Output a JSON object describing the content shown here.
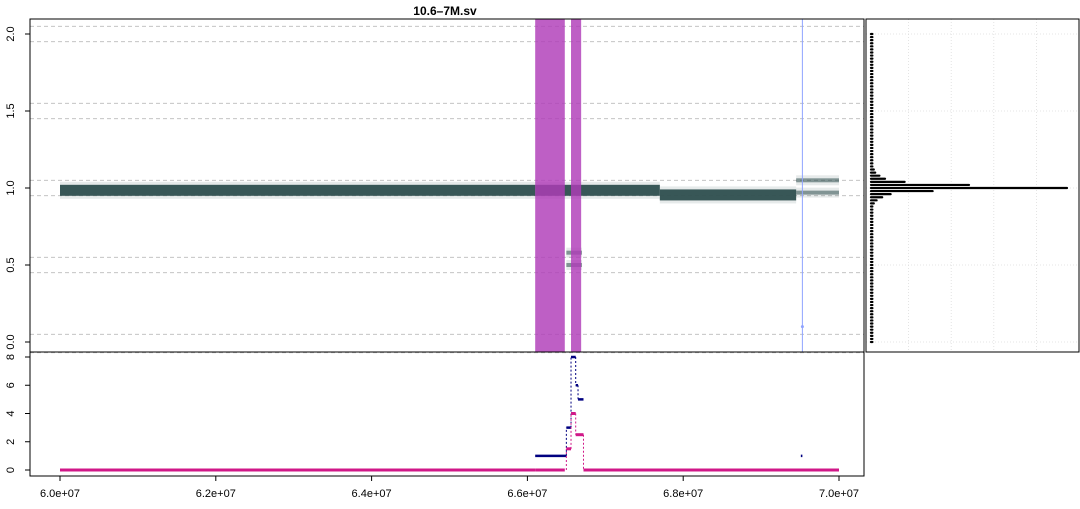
{
  "chart_data": [
    {
      "type": "scatter",
      "title": "10.6–7M.sv",
      "xlim": [
        60000000,
        70000000
      ],
      "ylim": [
        -0.1,
        2.1
      ],
      "yticks": [
        "0.0",
        "0.5",
        "1.0",
        "1.5",
        "2.0"
      ],
      "ytick_values": [
        0,
        0.5,
        1.0,
        1.5,
        2.0
      ],
      "grid": "dashed horizontal lines",
      "colors": {
        "segments": "#2f4f4f",
        "highlight": "#b03cb8",
        "marker_line": "#8fa3ff",
        "grid": "#bbbbbb"
      },
      "highlight_regions": [
        {
          "x0": 66100000,
          "x1": 66480000
        },
        {
          "x0": 66560000,
          "x1": 66690000
        }
      ],
      "marker_line_x": 69530000,
      "segments": [
        {
          "x0": 60000000,
          "x1": 66100000,
          "y": 0.985
        },
        {
          "x0": 66100000,
          "x1": 67700000,
          "y": 0.985
        },
        {
          "x0": 67700000,
          "x1": 69450000,
          "y": 0.955
        },
        {
          "x0": 69450000,
          "x1": 70000000,
          "y": 0.97
        },
        {
          "x0": 69450000,
          "x1": 70000000,
          "y": 1.05
        },
        {
          "x0": 66500000,
          "x1": 66700000,
          "y": 0.5
        },
        {
          "x0": 66500000,
          "x1": 66700000,
          "y": 0.58
        }
      ],
      "points": [
        {
          "x": 69530000,
          "y": 0.1
        }
      ]
    },
    {
      "type": "line",
      "xlim": [
        60000000,
        70000000
      ],
      "ylim": [
        0,
        8
      ],
      "xticks": [
        "6.0e+07",
        "6.2e+07",
        "6.4e+07",
        "6.6e+07",
        "6.8e+07",
        "7.0e+07"
      ],
      "xtick_values": [
        60000000,
        62000000,
        64000000,
        66000000,
        68000000,
        70000000
      ],
      "yticks": [
        "0",
        "2",
        "4",
        "6",
        "8"
      ],
      "ytick_values": [
        0,
        2,
        4,
        6,
        8
      ],
      "series": [
        {
          "color": "#000080",
          "segments": [
            {
              "x0": 66100000,
              "x1": 66500000,
              "y": 1
            },
            {
              "x0": 66500000,
              "x1": 66560000,
              "y": 3
            },
            {
              "x0": 66560000,
              "x1": 66620000,
              "y": 8
            },
            {
              "x0": 66620000,
              "x1": 66650000,
              "y": 6
            },
            {
              "x0": 66650000,
              "x1": 66720000,
              "y": 5
            },
            {
              "x0": 69510000,
              "x1": 69530000,
              "y": 1
            }
          ]
        },
        {
          "color": "#d01888",
          "segments": [
            {
              "x0": 60000000,
              "x1": 66100000,
              "y": 0
            },
            {
              "x0": 66100000,
              "x1": 66480000,
              "y": 0
            },
            {
              "x0": 66500000,
              "x1": 66560000,
              "y": 1.5
            },
            {
              "x0": 66560000,
              "x1": 66620000,
              "y": 4
            },
            {
              "x0": 66620000,
              "x1": 66720000,
              "y": 2.5
            },
            {
              "x0": 66720000,
              "x1": 70000000,
              "y": 0
            }
          ]
        }
      ]
    },
    {
      "type": "bar",
      "orientation": "horizontal",
      "ylim": [
        -0.1,
        2.1
      ],
      "bins": [
        0.0,
        0.02,
        0.04,
        0.06,
        0.08,
        0.1,
        0.12,
        0.14,
        0.16,
        0.18,
        0.2,
        0.22,
        0.24,
        0.26,
        0.28,
        0.3,
        0.32,
        0.34,
        0.36,
        0.38,
        0.4,
        0.42,
        0.44,
        0.46,
        0.48,
        0.5,
        0.52,
        0.54,
        0.56,
        0.58,
        0.6,
        0.62,
        0.64,
        0.66,
        0.68,
        0.7,
        0.72,
        0.74,
        0.76,
        0.78,
        0.8,
        0.82,
        0.84,
        0.86,
        0.88,
        0.9,
        0.92,
        0.94,
        0.96,
        0.98,
        1.0,
        1.02,
        1.04,
        1.06,
        1.08,
        1.1,
        1.12,
        1.14,
        1.16,
        1.18,
        1.2,
        1.22,
        1.24,
        1.26,
        1.28,
        1.3,
        1.32,
        1.34,
        1.36,
        1.38,
        1.4,
        1.42,
        1.44,
        1.46,
        1.48,
        1.5,
        1.52,
        1.54,
        1.56,
        1.58,
        1.6,
        1.62,
        1.64,
        1.66,
        1.68,
        1.7,
        1.72,
        1.74,
        1.76,
        1.78,
        1.8,
        1.82,
        1.84,
        1.86,
        1.88,
        1.9,
        1.92,
        1.94,
        1.96,
        1.98,
        2.0
      ],
      "values": [
        1,
        1,
        1,
        1,
        1,
        1,
        1,
        1,
        1,
        1,
        1,
        1,
        1,
        1,
        1,
        1,
        1,
        1,
        1,
        1,
        1,
        1,
        1,
        1,
        1,
        1,
        1,
        1,
        1,
        1,
        1,
        1,
        1,
        1,
        1,
        1,
        1,
        1,
        1,
        1,
        1,
        1,
        1,
        1,
        1,
        2,
        4,
        8,
        14,
        44,
        140,
        70,
        24,
        10,
        6,
        3,
        2,
        1,
        1,
        1,
        1,
        1,
        1,
        1,
        1,
        1,
        1,
        1,
        1,
        1,
        1,
        1,
        1,
        1,
        1,
        1,
        1,
        1,
        1,
        1,
        1,
        1,
        1,
        1,
        1,
        1,
        1,
        1,
        1,
        1,
        1,
        1,
        1,
        1,
        1,
        1,
        1,
        1,
        1,
        1,
        1
      ],
      "xlim": [
        0,
        145
      ],
      "grid": "dotted"
    }
  ]
}
